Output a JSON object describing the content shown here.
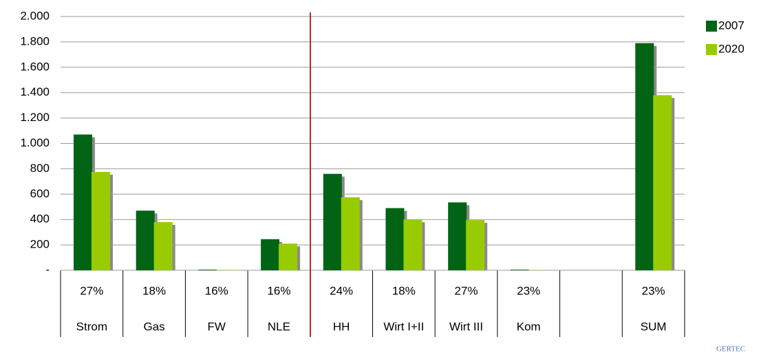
{
  "chart_data": {
    "type": "bar",
    "categories": [
      "Strom",
      "Gas",
      "FW",
      "NLE",
      "HH",
      "Wirt I+II",
      "Wirt III",
      "Kom",
      null,
      "SUM"
    ],
    "percent_labels": [
      "27%",
      "18%",
      "16%",
      "16%",
      "24%",
      "18%",
      "27%",
      "23%",
      null,
      "23%"
    ],
    "series": [
      {
        "name": "2007",
        "color": "#006414",
        "values": [
          1070,
          470,
          5,
          245,
          760,
          490,
          535,
          5,
          null,
          1790
        ]
      },
      {
        "name": "2020",
        "color": "#99cc00",
        "values": [
          775,
          380,
          3,
          210,
          575,
          400,
          395,
          2,
          null,
          1380
        ]
      }
    ],
    "ylim": [
      0,
      2000
    ],
    "yticks": [
      {
        "value": 0,
        "label": "-"
      },
      200,
      400,
      600,
      800,
      {
        "value": 1000,
        "label": "1.000"
      },
      {
        "value": 1200,
        "label": "1.200"
      },
      {
        "value": 1400,
        "label": "1.400"
      },
      {
        "value": 1600,
        "label": "1.600"
      },
      {
        "value": 1800,
        "label": "1.800"
      },
      {
        "value": 2000,
        "label": "2.000"
      }
    ],
    "grid": true,
    "legend": "right",
    "logo": "GERTEC"
  }
}
